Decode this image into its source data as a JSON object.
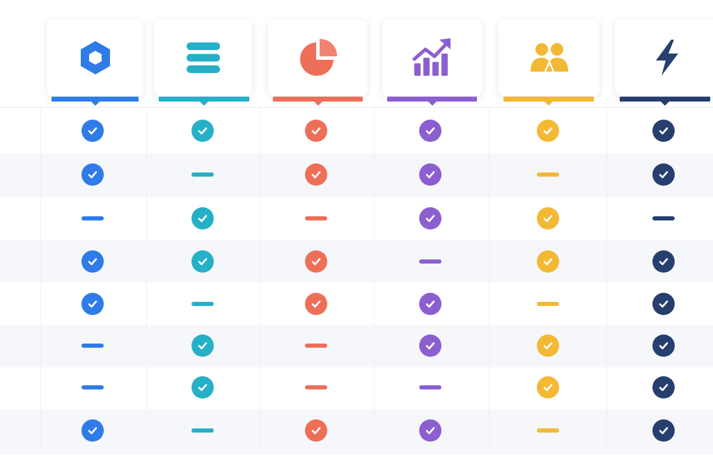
{
  "columns": [
    {
      "id": "product-hexagon",
      "icon": "hexagon-icon",
      "color": "#2f7be8"
    },
    {
      "id": "product-stack",
      "icon": "stacked-bars-icon",
      "color": "#25b0c8"
    },
    {
      "id": "product-pie",
      "icon": "pie-chart-icon",
      "color": "#ee6f58"
    },
    {
      "id": "product-growth",
      "icon": "growth-chart-icon",
      "color": "#8c5fd0"
    },
    {
      "id": "product-team",
      "icon": "team-icon",
      "color": "#f3b935"
    },
    {
      "id": "product-lightning",
      "icon": "lightning-icon",
      "color": "#263f6e"
    }
  ],
  "rows": [
    [
      "check",
      "check",
      "check",
      "check",
      "check",
      "check"
    ],
    [
      "check",
      "dash",
      "check",
      "check",
      "dash",
      "check"
    ],
    [
      "dash",
      "check",
      "dash",
      "check",
      "check",
      "dash"
    ],
    [
      "check",
      "check",
      "check",
      "dash",
      "check",
      "check"
    ],
    [
      "check",
      "dash",
      "check",
      "check",
      "dash",
      "check"
    ],
    [
      "dash",
      "check",
      "dash",
      "check",
      "check",
      "check"
    ],
    [
      "dash",
      "check",
      "dash",
      "dash",
      "check",
      "check"
    ],
    [
      "check",
      "dash",
      "check",
      "check",
      "dash",
      "check"
    ]
  ],
  "colors": {
    "row_stripe": "#f5f7fb",
    "grid_line": "#eef0f4"
  }
}
